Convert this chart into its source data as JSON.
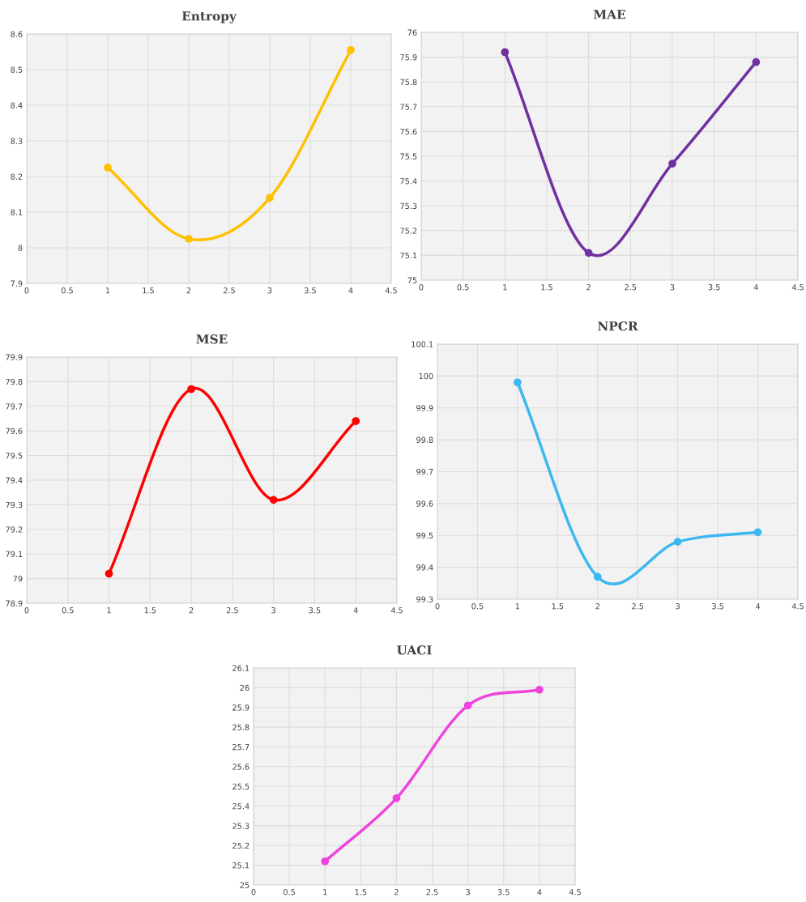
{
  "chart_data": [
    {
      "type": "line",
      "title": "Entropy",
      "x": [
        1,
        2,
        3,
        4
      ],
      "series": [
        {
          "color": "#ffc000",
          "values": [
            8.225,
            8.025,
            8.14,
            8.555
          ]
        }
      ],
      "xlim": [
        0,
        4.5
      ],
      "xticks": [
        0,
        0.5,
        1,
        1.5,
        2,
        2.5,
        3,
        3.5,
        4,
        4.5
      ],
      "ylim": [
        7.9,
        8.6
      ],
      "yticks": [
        7.9,
        8,
        8.1,
        8.2,
        8.3,
        8.4,
        8.5,
        8.6
      ],
      "grid": true,
      "marker": "circle",
      "line_style": "solid"
    },
    {
      "type": "line",
      "title": "MAE",
      "x": [
        1,
        2,
        3,
        4
      ],
      "series": [
        {
          "color": "#7030a0",
          "values": [
            75.92,
            75.11,
            75.47,
            75.88
          ]
        }
      ],
      "xlim": [
        0,
        4.5
      ],
      "xticks": [
        0,
        0.5,
        1,
        1.5,
        2,
        2.5,
        3,
        3.5,
        4,
        4.5
      ],
      "ylim": [
        75,
        76
      ],
      "yticks": [
        75,
        75.1,
        75.2,
        75.3,
        75.4,
        75.5,
        75.6,
        75.7,
        75.8,
        75.9,
        76
      ],
      "grid": true,
      "marker": "circle",
      "line_style": "solid"
    },
    {
      "type": "line",
      "title": "MSE",
      "x": [
        1,
        2,
        3,
        4
      ],
      "series": [
        {
          "color": "#ff0000",
          "values": [
            79.02,
            79.77,
            79.32,
            79.64
          ]
        }
      ],
      "xlim": [
        0,
        4.5
      ],
      "xticks": [
        0,
        0.5,
        1,
        1.5,
        2,
        2.5,
        3,
        3.5,
        4,
        4.5
      ],
      "ylim": [
        78.9,
        79.9
      ],
      "yticks": [
        78.9,
        79,
        79.1,
        79.2,
        79.3,
        79.4,
        79.5,
        79.6,
        79.7,
        79.8,
        79.9
      ],
      "grid": true,
      "marker": "circle",
      "line_style": "solid"
    },
    {
      "type": "line",
      "title": "NPCR",
      "x": [
        1,
        2,
        3,
        4
      ],
      "series": [
        {
          "color": "#3bb8f0",
          "values": [
            99.98,
            99.37,
            99.48,
            99.51
          ]
        }
      ],
      "xlim": [
        0,
        4.5
      ],
      "xticks": [
        0,
        0.5,
        1,
        1.5,
        2,
        2.5,
        3,
        3.5,
        4,
        4.5
      ],
      "ylim": [
        99.3,
        100.1
      ],
      "yticks": [
        99.3,
        99.4,
        99.5,
        99.6,
        99.7,
        99.8,
        99.9,
        100,
        100.1
      ],
      "grid": true,
      "marker": "circle",
      "line_style": "solid"
    },
    {
      "type": "line",
      "title": "UACI",
      "x": [
        1,
        2,
        3,
        4
      ],
      "series": [
        {
          "color": "#ee44dd",
          "values": [
            25.12,
            25.44,
            25.91,
            25.99
          ]
        }
      ],
      "xlim": [
        0,
        4.5
      ],
      "xticks": [
        0,
        0.5,
        1,
        1.5,
        2,
        2.5,
        3,
        3.5,
        4,
        4.5
      ],
      "ylim": [
        25,
        26.1
      ],
      "yticks": [
        25,
        25.1,
        25.2,
        25.3,
        25.4,
        25.5,
        25.6,
        25.7,
        25.8,
        25.9,
        26,
        26.1
      ],
      "grid": true,
      "marker": "circle",
      "line_style": "solid"
    }
  ]
}
